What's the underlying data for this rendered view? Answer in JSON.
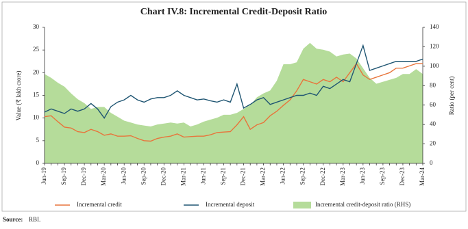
{
  "chart_data": {
    "type": "line-area",
    "title": "Chart IV.8: Incremental Credit-Deposit Ratio",
    "y_label": "Value (₹ lakh crore)",
    "y2_label": "Ratio (per cent)",
    "categories": [
      "Jun-19",
      null,
      null,
      "Sep-19",
      null,
      null,
      "Dec-19",
      null,
      null,
      "Mar-20",
      null,
      null,
      "Jun-20",
      null,
      null,
      "Sep-20",
      null,
      null,
      "Dec-20",
      null,
      null,
      "Mar-21",
      null,
      null,
      "Jun-21",
      null,
      null,
      "Sep-21",
      null,
      null,
      "Dec-21",
      null,
      null,
      "Mar-22",
      null,
      null,
      "Jun-22",
      null,
      null,
      "Sep-22",
      null,
      null,
      "Dec-22",
      null,
      null,
      "Mar-23",
      null,
      null,
      "Jun-23",
      null,
      null,
      "Sep-23",
      null,
      null,
      "Dec-23",
      null,
      null,
      "Mar-24"
    ],
    "series": [
      {
        "name": "Incremental credit",
        "type": "line",
        "color": "#e8743b",
        "values": [
          10.3,
          10.5,
          9.2,
          8.0,
          7.8,
          7.0,
          6.8,
          7.5,
          7.0,
          6.2,
          6.5,
          6.0,
          6.0,
          6.1,
          5.5,
          5.0,
          4.9,
          5.5,
          5.8,
          6.0,
          6.5,
          5.8,
          5.9,
          6.0,
          6.0,
          6.3,
          6.8,
          6.9,
          7.0,
          8.5,
          10.3,
          7.5,
          8.5,
          9.0,
          10.5,
          11.5,
          12.8,
          14.0,
          16.0,
          18.5,
          18.0,
          17.5,
          18.5,
          18.0,
          19.0,
          18.0,
          20.0,
          22.0,
          19.5,
          18.5,
          19.0,
          19.5,
          20.0,
          21.0,
          21.0,
          21.5,
          22.0,
          22.0
        ]
      },
      {
        "name": "Incremental deposit",
        "type": "line",
        "color": "#1f5572",
        "values": [
          11.3,
          12.0,
          11.5,
          11.0,
          12.0,
          11.5,
          12.0,
          13.2,
          12.0,
          10.0,
          12.5,
          13.5,
          14.0,
          15.0,
          14.0,
          13.5,
          14.2,
          14.5,
          14.5,
          15.0,
          16.0,
          15.0,
          14.5,
          14.0,
          14.2,
          13.8,
          13.5,
          14.0,
          13.5,
          17.5,
          12.2,
          13.0,
          14.0,
          14.5,
          13.0,
          13.5,
          14.0,
          14.5,
          15.0,
          15.0,
          15.5,
          15.0,
          17.0,
          16.5,
          17.5,
          18.5,
          18.0,
          22.0,
          26.0,
          20.5,
          21.0,
          21.5,
          22.0,
          22.5,
          22.5,
          22.5,
          22.5,
          23.0
        ]
      },
      {
        "name": "Incremental credit-deposit ratio (RHS)",
        "type": "area",
        "axis": "y2",
        "color": "#b5dc9a",
        "values": [
          92,
          88,
          83,
          79,
          72,
          66,
          62,
          56,
          58,
          58,
          52,
          48,
          44,
          42,
          40,
          39,
          38,
          40,
          41,
          42,
          41,
          42,
          38,
          40,
          43,
          45,
          47,
          50,
          50,
          52,
          56,
          60,
          68,
          72,
          75,
          85,
          102,
          102,
          104,
          118,
          124,
          118,
          117,
          115,
          110,
          112,
          113,
          108,
          98,
          88,
          82,
          84,
          86,
          88,
          92,
          92,
          97,
          92
        ]
      }
    ],
    "ylim": [
      0,
      30
    ],
    "yticks": [
      0,
      5,
      10,
      15,
      20,
      25,
      30
    ],
    "y2lim": [
      0,
      140
    ],
    "y2ticks": [
      0,
      20,
      40,
      60,
      80,
      100,
      120,
      140
    ]
  },
  "source": {
    "label": "Source:",
    "text": "RBI."
  }
}
